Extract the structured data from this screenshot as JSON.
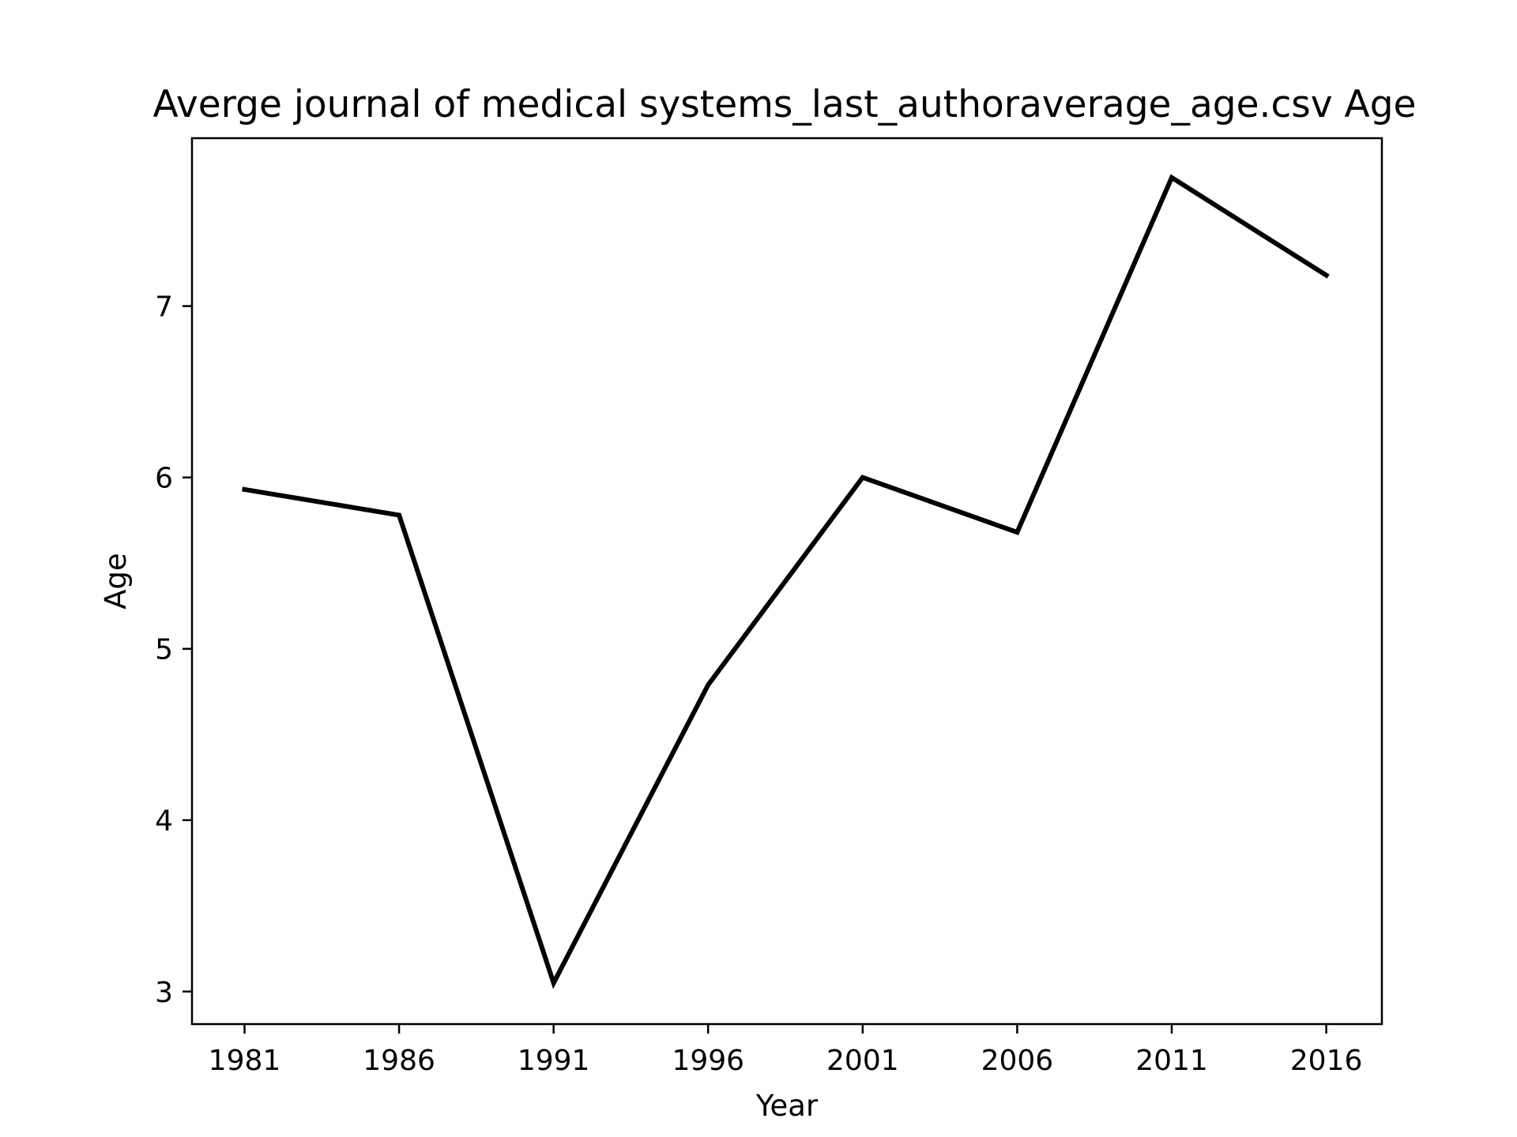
{
  "chart_data": {
    "type": "line",
    "title": "Averge journal of medical systems_last_authoraverage_age.csv Age",
    "xlabel": "Year",
    "ylabel": "Age",
    "x": [
      1981,
      1986,
      1991,
      1996,
      2001,
      2006,
      2011,
      2016
    ],
    "series": [
      {
        "values": [
          5.93,
          5.78,
          3.05,
          4.79,
          6.0,
          5.68,
          7.75,
          7.18
        ],
        "color": "#000000"
      }
    ],
    "xticks": [
      "1981",
      "1986",
      "1991",
      "1996",
      "2001",
      "2006",
      "2011",
      "2016"
    ],
    "yticks": [
      "3",
      "4",
      "5",
      "6",
      "7"
    ],
    "xlim": [
      1979.3,
      2017.8
    ],
    "ylim": [
      2.81,
      7.98
    ],
    "grid": false,
    "legend": "none"
  }
}
